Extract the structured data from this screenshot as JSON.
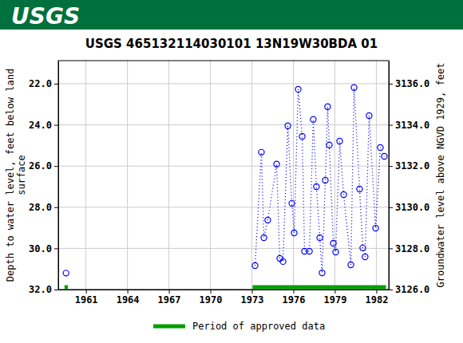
{
  "chart_data": {
    "type": "line",
    "header": "USGS",
    "title": "USGS 465132114030101 13N19W30BDA 01",
    "ylabel": [
      "Depth to water level, feet below land",
      "surface"
    ],
    "y2label": "Groundwater level above NGVD 1929, feet",
    "grid": true,
    "xlim": [
      1959.0,
      1982.9
    ],
    "xticks": [
      1961,
      1964,
      1967,
      1970,
      1973,
      1976,
      1979,
      1982
    ],
    "ylim": [
      32,
      20.88
    ],
    "yticks": [
      {
        "value": 22,
        "label": "22.0"
      },
      {
        "value": 24,
        "label": "24.0"
      },
      {
        "value": 26,
        "label": "26.0"
      },
      {
        "value": 28,
        "label": "28.0"
      },
      {
        "value": 30,
        "label": "30.0"
      },
      {
        "value": 32,
        "label": "32.0"
      }
    ],
    "y2lim": [
      3126,
      3137.12
    ],
    "y2ticks": [
      {
        "value": 3126,
        "label": "3126.0"
      },
      {
        "value": 3128,
        "label": "3128.0"
      },
      {
        "value": 3130,
        "label": "3130.0"
      },
      {
        "value": 3132,
        "label": "3132.0"
      },
      {
        "value": 3134,
        "label": "3134.0"
      },
      {
        "value": 3136,
        "label": "3136.0"
      }
    ],
    "x": [
      1959.56,
      null,
      1973.23,
      1973.69,
      1973.87,
      1974.15,
      1974.79,
      1975.02,
      1975.25,
      1975.6,
      1975.89,
      1976.06,
      1976.35,
      1976.64,
      1976.81,
      1977.16,
      1977.44,
      1977.67,
      1977.91,
      1978.08,
      1978.31,
      1978.48,
      1978.6,
      1978.89,
      1979.06,
      1979.35,
      1979.64,
      1980.16,
      1980.39,
      1980.79,
      1981.02,
      1981.19,
      1981.48,
      1981.95,
      1982.29,
      1982.58
    ],
    "series": [
      {
        "color": "#0000ff",
        "marker": "circle",
        "line_style": "dotted",
        "values": [
          31.2,
          null,
          30.84,
          25.33,
          29.48,
          28.63,
          25.91,
          30.49,
          30.64,
          24.05,
          27.81,
          29.25,
          22.27,
          24.56,
          30.14,
          30.14,
          23.74,
          27.0,
          29.48,
          31.19,
          26.69,
          23.12,
          24.98,
          29.75,
          30.18,
          24.79,
          27.39,
          30.8,
          22.19,
          27.12,
          29.98,
          30.41,
          23.55,
          29.02,
          25.1,
          25.53
        ]
      }
    ],
    "approved_data": {
      "label": "Period of approved data",
      "color": "#00a000",
      "periods": [
        [
          1959.45,
          1959.7
        ],
        [
          1973.05,
          1982.7
        ]
      ]
    }
  }
}
